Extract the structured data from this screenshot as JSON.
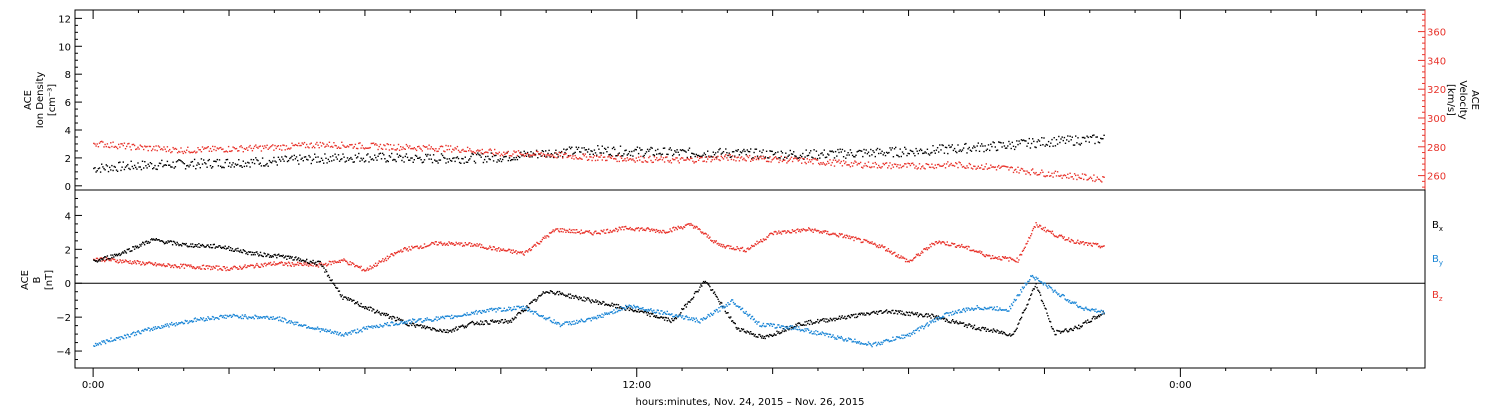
{
  "colors": {
    "black": "#000000",
    "red": "#e8332b",
    "blue": "#1b86d6"
  },
  "footer": {
    "xlabel": "hours:minutes, Nov. 24, 2015 – Nov. 26, 2015"
  },
  "chart_data": [
    {
      "type": "scatter",
      "panel": "plasma",
      "ylabel_left": [
        "ACE",
        "Ion Density",
        "[cm⁻³]"
      ],
      "ylabel_right": [
        "ACE",
        "Velocity",
        "[km/s]"
      ],
      "x_unit": "hours since 00:00 Nov. 24, 2015",
      "xlim": [
        -0.4,
        29.4
      ],
      "ylim_left": [
        -0.3,
        12.6
      ],
      "ylim_right": [
        250,
        375
      ],
      "yticks_left": [
        "0",
        "2",
        "4",
        "6",
        "8",
        "10",
        "12"
      ],
      "yticks_right": [
        "260",
        "280",
        "300",
        "320",
        "340",
        "360"
      ],
      "xticks": [
        "0:00",
        "12:00",
        "0:00"
      ],
      "series": [
        {
          "axis": "left",
          "color": "black",
          "x": [
            0.0,
            1.0,
            2.0,
            3.0,
            4.0,
            5.0,
            6.0,
            7.0,
            8.0,
            9.0,
            10.0,
            11.0,
            12.0,
            13.0,
            14.0,
            15.0,
            16.0,
            17.0,
            18.0,
            19.0,
            20.0,
            21.0,
            22.3
          ],
          "y": [
            1.3,
            1.5,
            1.6,
            1.7,
            1.8,
            2.0,
            2.1,
            2.0,
            2.0,
            2.1,
            2.4,
            2.6,
            2.5,
            2.4,
            2.4,
            2.3,
            2.3,
            2.4,
            2.5,
            2.7,
            2.9,
            3.2,
            3.4
          ]
        },
        {
          "axis": "right",
          "color": "red",
          "x": [
            0.0,
            1.0,
            2.0,
            3.0,
            4.0,
            5.0,
            6.0,
            7.0,
            8.0,
            9.0,
            10.0,
            11.0,
            12.0,
            13.0,
            14.0,
            15.0,
            16.0,
            17.0,
            18.0,
            19.0,
            20.0,
            21.0,
            22.3
          ],
          "y": [
            283,
            280,
            278,
            279,
            280,
            282,
            281,
            280,
            279,
            276,
            275,
            273,
            272,
            271,
            273,
            272,
            270,
            268,
            267,
            268,
            266,
            262,
            258
          ]
        }
      ]
    },
    {
      "type": "scatter",
      "panel": "magnetic",
      "ylabel_left": [
        "ACE",
        "B",
        "[nT]"
      ],
      "legend": [
        "Bₓ",
        "Bᵧ",
        "B_z"
      ],
      "legend_labels": [
        {
          "base": "B",
          "sub": "x",
          "color": "black"
        },
        {
          "base": "B",
          "sub": "y",
          "color": "blue"
        },
        {
          "base": "B",
          "sub": "z",
          "color": "red"
        }
      ],
      "xlim": [
        -0.4,
        29.4
      ],
      "ylim": [
        -5.0,
        5.5
      ],
      "yticks": [
        "−4",
        "−2",
        "0",
        "2",
        "4"
      ],
      "xticks": [
        "0:00",
        "12:00",
        "0:00"
      ],
      "zero_line": true,
      "series": [
        {
          "name": "Bx",
          "color": "black",
          "x": [
            0.0,
            0.6,
            1.3,
            2.0,
            2.8,
            3.5,
            4.2,
            5.0,
            5.5,
            6.2,
            7.0,
            7.8,
            8.4,
            9.2,
            10.0,
            11.0,
            12.0,
            12.8,
            13.5,
            14.2,
            14.8,
            15.5,
            16.5,
            17.5,
            18.5,
            19.5,
            20.3,
            20.8,
            21.2,
            21.7,
            22.3
          ],
          "y": [
            1.3,
            1.8,
            2.6,
            2.3,
            2.2,
            1.8,
            1.6,
            1.2,
            -0.8,
            -1.6,
            -2.4,
            -2.8,
            -2.3,
            -2.2,
            -0.4,
            -1.0,
            -1.6,
            -2.2,
            0.2,
            -2.6,
            -3.2,
            -2.4,
            -2.0,
            -1.6,
            -1.9,
            -2.6,
            -3.0,
            0.0,
            -2.9,
            -2.6,
            -1.7
          ]
        },
        {
          "name": "By",
          "color": "blue",
          "x": [
            0.0,
            0.8,
            1.5,
            2.3,
            3.0,
            4.0,
            5.0,
            5.5,
            6.2,
            7.0,
            7.8,
            8.6,
            9.5,
            10.3,
            11.0,
            11.8,
            12.6,
            13.4,
            14.1,
            14.7,
            15.5,
            16.3,
            17.2,
            18.0,
            18.8,
            19.5,
            20.2,
            20.7,
            21.3,
            21.8,
            22.3
          ],
          "y": [
            -3.6,
            -3.0,
            -2.5,
            -2.1,
            -1.9,
            -2.0,
            -2.7,
            -3.0,
            -2.5,
            -2.2,
            -2.0,
            -1.6,
            -1.4,
            -2.4,
            -2.1,
            -1.3,
            -1.7,
            -2.2,
            -1.0,
            -2.4,
            -2.6,
            -3.1,
            -3.6,
            -3.0,
            -1.8,
            -1.4,
            -1.5,
            0.5,
            -0.6,
            -1.4,
            -1.7
          ]
        },
        {
          "name": "Bz",
          "color": "red",
          "x": [
            0.0,
            0.8,
            1.5,
            2.3,
            3.0,
            4.0,
            5.0,
            5.5,
            6.0,
            6.8,
            7.6,
            8.4,
            9.0,
            9.5,
            10.2,
            11.0,
            11.8,
            12.6,
            13.2,
            13.8,
            14.4,
            15.0,
            15.8,
            16.6,
            17.4,
            18.0,
            18.6,
            19.2,
            19.8,
            20.4,
            20.8,
            21.3,
            21.8,
            22.3
          ],
          "y": [
            1.5,
            1.3,
            1.1,
            1.0,
            0.9,
            1.2,
            1.1,
            1.4,
            0.8,
            2.0,
            2.4,
            2.3,
            2.0,
            1.8,
            3.2,
            3.0,
            3.3,
            3.1,
            3.5,
            2.3,
            2.0,
            3.0,
            3.2,
            2.8,
            2.2,
            1.3,
            2.5,
            2.2,
            1.6,
            1.4,
            3.5,
            2.8,
            2.4,
            2.2
          ]
        }
      ]
    }
  ]
}
